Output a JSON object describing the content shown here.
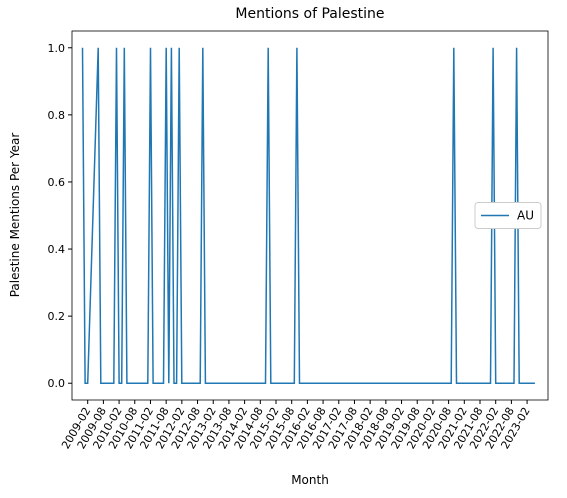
{
  "chart_data": {
    "type": "line",
    "title": "Mentions of Palestine",
    "xlabel": "Month",
    "ylabel": "Palestine Mentions Per Year",
    "x": [
      "2008-12",
      "2009-01",
      "2009-02",
      "2009-06",
      "2009-07",
      "2009-12",
      "2010-01",
      "2010-02",
      "2010-03",
      "2010-04",
      "2010-05",
      "2011-01",
      "2011-02",
      "2011-03",
      "2011-07",
      "2011-08",
      "2011-09",
      "2011-10",
      "2011-11",
      "2011-12",
      "2012-01",
      "2012-02",
      "2012-09",
      "2012-10",
      "2012-11",
      "2014-10",
      "2014-11",
      "2014-12",
      "2015-09",
      "2015-10",
      "2015-11",
      "2020-09",
      "2020-10",
      "2020-11",
      "2021-12",
      "2022-01",
      "2022-02",
      "2022-09",
      "2022-10",
      "2022-11",
      "2023-05"
    ],
    "series": [
      {
        "name": "AU",
        "color": "#1f77b4",
        "values": [
          1,
          0,
          0,
          1,
          0,
          0,
          1,
          0,
          0,
          1,
          0,
          0,
          1,
          0,
          0,
          1,
          0,
          1,
          0,
          0,
          1,
          0,
          0,
          1,
          0,
          0,
          1,
          0,
          0,
          1,
          0,
          0,
          1,
          0,
          0,
          1,
          0,
          0,
          1,
          0,
          0
        ]
      }
    ],
    "xlim": [
      "2008-08",
      "2023-10"
    ],
    "xticks": [
      "2009-02",
      "2009-08",
      "2010-02",
      "2010-08",
      "2011-02",
      "2011-08",
      "2012-02",
      "2012-08",
      "2013-02",
      "2013-08",
      "2014-02",
      "2014-08",
      "2015-02",
      "2015-08",
      "2016-02",
      "2016-08",
      "2017-02",
      "2017-08",
      "2018-02",
      "2018-08",
      "2019-02",
      "2019-08",
      "2020-02",
      "2020-08",
      "2021-02",
      "2021-08",
      "2022-02",
      "2022-08",
      "2023-02"
    ],
    "ylim": [
      -0.05,
      1.05
    ],
    "yticks": [
      {
        "value": 0,
        "label": "0.0"
      },
      0.2,
      0.4,
      0.6,
      0.8,
      {
        "value": 1,
        "label": "1.0"
      }
    ],
    "legend": "center right"
  }
}
